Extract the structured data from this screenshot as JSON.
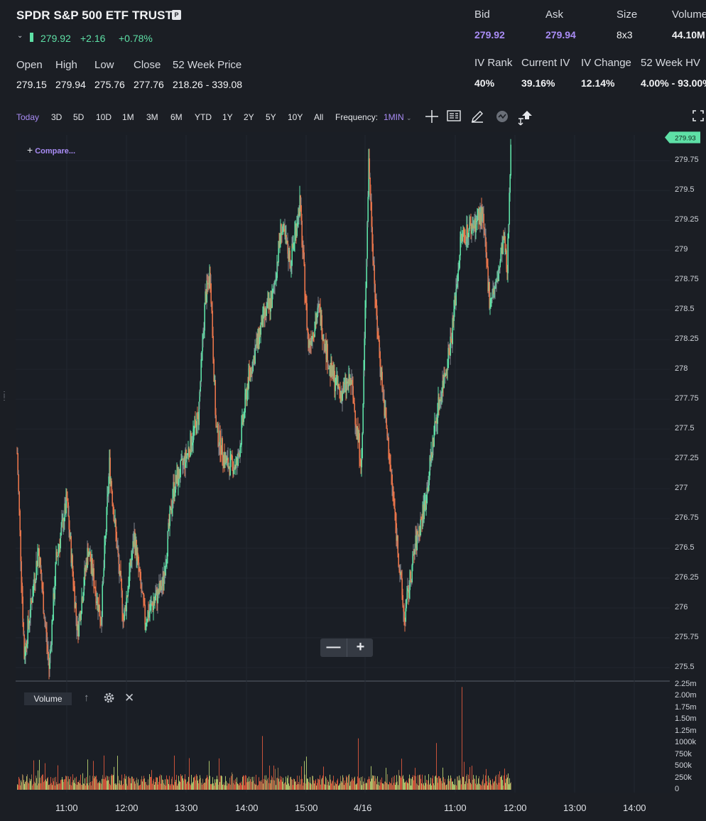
{
  "header": {
    "title": "SPDR S&P 500 ETF TRUST",
    "badge": "P",
    "last": "279.92",
    "change": "+2.16",
    "change_pct": "+0.78%"
  },
  "stats": [
    {
      "label": "Open",
      "value": "279.15"
    },
    {
      "label": "High",
      "value": "279.94"
    },
    {
      "label": "Low",
      "value": "275.76"
    },
    {
      "label": "Close",
      "value": "277.76"
    },
    {
      "label": "52 Week Price",
      "value": "218.26 - 339.08"
    }
  ],
  "quote": [
    {
      "label": "Bid",
      "value": "279.92"
    },
    {
      "label": "Ask",
      "value": "279.94"
    },
    {
      "label": "Size",
      "value": "8x3"
    },
    {
      "label": "Volume",
      "value": "44.10M"
    }
  ],
  "volatility": [
    {
      "label": "IV Rank",
      "value": "40%"
    },
    {
      "label": "Current IV",
      "value": "39.16%"
    },
    {
      "label": "IV Change",
      "value": "12.14%"
    },
    {
      "label": "52 Week HV",
      "value": "4.00% - 93.00%"
    }
  ],
  "timeframes": [
    "Today",
    "3D",
    "5D",
    "10D",
    "1M",
    "3M",
    "6M",
    "YTD",
    "1Y",
    "2Y",
    "5Y",
    "10Y",
    "All"
  ],
  "active_timeframe": "Today",
  "frequency": {
    "label": "Frequency:",
    "value": "1MIN"
  },
  "tools": [
    "crosshair-icon",
    "news-icon",
    "pencil-icon",
    "indicator-icon",
    "share-icon",
    "fullscreen-icon"
  ],
  "compare_label": "Compare...",
  "current_price_tag": "279.93",
  "price_axis": [
    "279.75",
    "279.5",
    "279.25",
    "279",
    "278.75",
    "278.5",
    "278.25",
    "278",
    "277.75",
    "277.5",
    "277.25",
    "277",
    "276.75",
    "276.5",
    "276.25",
    "276",
    "275.75",
    "275.5"
  ],
  "volume_axis": [
    "2.25m",
    "2.00m",
    "1.75m",
    "1.50m",
    "1.25m",
    "1000k",
    "750k",
    "500k",
    "250k",
    "0"
  ],
  "time_axis": [
    "11:00",
    "12:00",
    "13:00",
    "14:00",
    "15:00",
    "4/16",
    "11:00",
    "12:00",
    "13:00",
    "14:00"
  ],
  "volume_panel": {
    "label": "Volume"
  },
  "colors": {
    "up": "#5ee0a6",
    "down": "#e8744a",
    "accent": "#a98cf5",
    "background": "#1b1e24"
  },
  "chart_data": {
    "type": "candlestick",
    "interval": "1MIN",
    "ylim": [
      275.4,
      279.95
    ],
    "volume_ylim": [
      0,
      2250000
    ],
    "x_ticks": [
      "11:00",
      "12:00",
      "13:00",
      "14:00",
      "15:00",
      "4/16",
      "11:00",
      "12:00",
      "13:00",
      "14:00"
    ],
    "price_path": [
      [
        0,
        277.3
      ],
      [
        10,
        275.6
      ],
      [
        30,
        276.5
      ],
      [
        45,
        275.5
      ],
      [
        55,
        276.4
      ],
      [
        70,
        276.9
      ],
      [
        85,
        275.8
      ],
      [
        100,
        276.5
      ],
      [
        118,
        275.9
      ],
      [
        130,
        277.2
      ],
      [
        150,
        275.9
      ],
      [
        165,
        276.6
      ],
      [
        180,
        275.9
      ],
      [
        205,
        276.2
      ],
      [
        220,
        277.0
      ],
      [
        240,
        277.3
      ],
      [
        255,
        277.6
      ],
      [
        265,
        278.6
      ],
      [
        272,
        278.8
      ],
      [
        280,
        277.5
      ],
      [
        295,
        277.2
      ],
      [
        310,
        277.2
      ],
      [
        325,
        277.9
      ],
      [
        345,
        278.4
      ],
      [
        360,
        278.6
      ],
      [
        372,
        279.2
      ],
      [
        385,
        278.9
      ],
      [
        398,
        279.4
      ],
      [
        410,
        278.2
      ],
      [
        425,
        278.5
      ],
      [
        440,
        278.0
      ],
      [
        455,
        277.8
      ],
      [
        470,
        277.9
      ],
      [
        485,
        277.2
      ],
      [
        495,
        279.75
      ],
      [
        505,
        278.5
      ],
      [
        515,
        277.8
      ],
      [
        530,
        276.9
      ],
      [
        545,
        275.9
      ],
      [
        560,
        276.5
      ],
      [
        575,
        276.9
      ],
      [
        590,
        277.6
      ],
      [
        600,
        277.9
      ],
      [
        612,
        278.3
      ],
      [
        625,
        279.1
      ],
      [
        640,
        279.2
      ],
      [
        655,
        279.3
      ],
      [
        665,
        278.6
      ],
      [
        675,
        278.7
      ],
      [
        685,
        279.1
      ],
      [
        690,
        278.8
      ],
      [
        695,
        279.93
      ]
    ],
    "volume_spikes": [
      [
        345,
        1150000
      ],
      [
        480,
        1100000
      ],
      [
        590,
        1000000
      ],
      [
        626,
        2200000
      ]
    ],
    "volume_base": 280000
  }
}
